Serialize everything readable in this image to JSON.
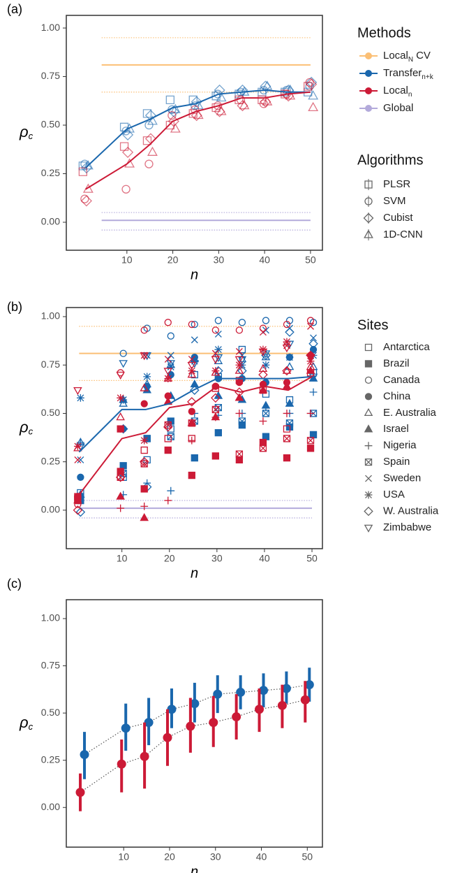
{
  "chart_data": [
    {
      "type": "line",
      "panel": "(a)",
      "xlabel": "n",
      "ylabel": "ρ",
      "ylabel_sub": "c",
      "xlim": [
        -3.2,
        52.6
      ],
      "ylim": [
        -0.144,
        1.065
      ],
      "xticks": [
        10,
        20,
        30,
        40,
        50
      ],
      "yticks": [
        {
          "value": 0,
          "label": "0.00"
        },
        0.25,
        {
          "value": 0.5,
          "label": "0.50"
        },
        0.75,
        {
          "value": 1,
          "label": "1.00"
        }
      ],
      "x": [
        1,
        10,
        15,
        20,
        25,
        30,
        35,
        40,
        45,
        50
      ],
      "legend_title": "Methods",
      "methods": [
        {
          "name": "Local",
          "sub": "N",
          "suffix": "CV",
          "color": "#fbbf75",
          "value": 0.81,
          "band": [
            0.67,
            0.95
          ],
          "span": [
            4.5,
            50
          ]
        },
        {
          "name": "Transfer",
          "sub": "n+k",
          "color": "#1a67ad",
          "values": [
            0.28,
            0.48,
            0.53,
            0.59,
            0.61,
            0.66,
            0.67,
            0.68,
            0.67,
            0.67
          ],
          "points": [
            [
              0.29,
              0.49,
              0.56,
              0.63,
              0.63,
              0.65,
              0.66,
              0.67,
              0.67,
              0.67
            ],
            [
              0.3,
              0.47,
              0.5,
              0.58,
              0.6,
              0.66,
              0.67,
              0.68,
              0.68,
              0.7
            ],
            [
              0.28,
              0.45,
              0.55,
              0.57,
              0.62,
              0.68,
              0.68,
              0.7,
              0.68,
              0.72
            ],
            [
              0.29,
              0.48,
              0.52,
              0.58,
              0.6,
              0.64,
              0.67,
              0.7,
              0.68,
              0.65
            ]
          ]
        },
        {
          "name": "Local",
          "sub": "n",
          "color": "#cc1a36",
          "values": [
            0.17,
            0.3,
            0.4,
            0.52,
            0.57,
            0.6,
            0.64,
            0.64,
            0.66,
            0.67
          ],
          "points": [
            [
              0.26,
              0.39,
              0.42,
              0.5,
              0.56,
              0.59,
              0.63,
              0.63,
              0.66,
              0.7
            ],
            [
              0.12,
              0.17,
              0.3,
              0.55,
              0.58,
              0.6,
              0.63,
              0.61,
              0.66,
              0.72
            ],
            [
              0.11,
              0.36,
              0.43,
              0.52,
              0.55,
              0.57,
              0.6,
              0.62,
              0.65,
              0.71
            ],
            [
              0.17,
              0.3,
              0.36,
              0.48,
              0.55,
              0.57,
              0.6,
              0.62,
              0.65,
              0.59
            ]
          ]
        },
        {
          "name": "Global",
          "color": "#b3aadb",
          "value": 0.01,
          "band": [
            -0.04,
            0.05
          ],
          "span": [
            4.5,
            50
          ]
        }
      ],
      "algorithms_title": "Algorithms",
      "algorithms": [
        {
          "name": "PLSR",
          "shape": "square"
        },
        {
          "name": "SVM",
          "shape": "circle"
        },
        {
          "name": "Cubist",
          "shape": "diamond"
        },
        {
          "name": "1D-CNN",
          "shape": "triangle"
        }
      ]
    },
    {
      "type": "scatter",
      "panel": "(b)",
      "xlabel": "n",
      "ylabel": "ρ",
      "ylabel_sub": "c",
      "xlim": [
        -1.7,
        52.2
      ],
      "ylim": [
        -0.199,
        1.047
      ],
      "xticks": [
        10,
        20,
        30,
        40,
        50
      ],
      "yticks": [
        {
          "value": 0,
          "label": "0.00"
        },
        0.25,
        {
          "value": 0.5,
          "label": "0.50"
        },
        0.75,
        {
          "value": 1,
          "label": "1.00"
        }
      ],
      "x": [
        1,
        10,
        15,
        20,
        25,
        30,
        35,
        40,
        45,
        50
      ],
      "refs": [
        {
          "color": "#fbbf75",
          "value": 0.81,
          "band": [
            0.67,
            0.95
          ],
          "span": [
            1,
            50
          ]
        },
        {
          "color": "#b3aadb",
          "value": 0.01,
          "band": [
            -0.04,
            0.05
          ],
          "span": [
            1,
            50
          ]
        }
      ],
      "lines": [
        {
          "color": "#1a67ad",
          "values": [
            0.3,
            0.52,
            0.52,
            0.55,
            0.62,
            0.68,
            0.68,
            0.68,
            0.68,
            0.69
          ],
          "sites": [
            [
              0.09,
              0.17,
              0.26,
              0.42,
              0.7,
              0.69,
              0.83,
              0.6,
              0.57,
              0.71
            ],
            [
              0.05,
              0.23,
              0.37,
              0.46,
              0.27,
              0.4,
              0.44,
              0.38,
              0.43,
              0.39
            ],
            [
              0.05,
              0.81,
              0.94,
              0.9,
              0.96,
              0.98,
              0.97,
              0.98,
              0.98,
              0.97
            ],
            [
              0.17,
              0.42,
              0.64,
              0.7,
              0.79,
              0.68,
              0.68,
              0.66,
              0.79,
              0.83
            ],
            [
              0.35,
              0.55,
              0.65,
              0.75,
              0.78,
              0.77,
              0.78,
              0.79,
              0.74,
              0.74
            ],
            [
              0.08,
              0.57,
              0.62,
              0.59,
              0.65,
              0.59,
              0.57,
              0.54,
              0.55,
              0.68
            ],
            [
              0.35,
              0.08,
              0.14,
              0.1,
              0.5,
              0.49,
              0.5,
              0.53,
              0.5,
              0.61
            ],
            [
              0.07,
              0.19,
              0.37,
              0.38,
              0.46,
              0.53,
              0.46,
              0.5,
              0.45,
              0.5
            ],
            [
              0.26,
              0.57,
              0.8,
              0.8,
              0.88,
              0.91,
              0.8,
              0.93,
              0.94,
              0.89
            ],
            [
              0.58,
              0.57,
              0.69,
              0.74,
              0.77,
              0.83,
              0.75,
              0.75,
              0.79,
              0.8
            ],
            [
              -0.01,
              0.42,
              0.12,
              0.57,
              0.62,
              0.72,
              0.72,
              0.8,
              0.92,
              0.86
            ],
            [
              0.33,
              0.76,
              0.8,
              0.76,
              0.76,
              0.79,
              0.78,
              0.81,
              0.86,
              0.69
            ]
          ]
        },
        {
          "color": "#cc1a36",
          "values": [
            0.08,
            0.37,
            0.4,
            0.53,
            0.55,
            0.64,
            0.61,
            0.64,
            0.62,
            0.69
          ],
          "sites": [
            [
              0.07,
              0.42,
              0.31,
              0.37,
              0.37,
              0.63,
              0.67,
              0.62,
              0.42,
              0.71
            ],
            [
              0.06,
              0.2,
              0.11,
              0.31,
              0.18,
              0.28,
              0.26,
              0.35,
              0.27,
              0.32
            ],
            [
              0.03,
              0.71,
              0.93,
              0.97,
              0.96,
              0.93,
              0.93,
              0.94,
              0.96,
              0.98
            ],
            [
              0.07,
              0.42,
              0.55,
              0.59,
              0.51,
              0.64,
              0.66,
              0.65,
              0.66,
              0.8
            ],
            [
              0.32,
              0.48,
              0.63,
              0.68,
              0.7,
              0.71,
              0.72,
              0.73,
              0.72,
              0.74
            ],
            [
              0.05,
              0.07,
              -0.04,
              0.56,
              0.45,
              0.48,
              0.58,
              0.62,
              0.64,
              0.72
            ],
            [
              0.07,
              0.01,
              0.02,
              0.05,
              0.36,
              0.48,
              0.5,
              0.46,
              0.5,
              0.5
            ],
            [
              0.05,
              0.17,
              0.24,
              0.44,
              0.45,
              0.52,
              0.29,
              0.32,
              0.37,
              0.36
            ],
            [
              0.26,
              0.42,
              0.8,
              0.78,
              0.78,
              0.81,
              0.82,
              0.92,
              0.85,
              0.95
            ],
            [
              0.33,
              0.58,
              0.36,
              0.68,
              0.72,
              0.72,
              0.75,
              0.83,
              0.87,
              0.77
            ],
            [
              0.0,
              0.17,
              0.25,
              0.43,
              0.56,
              0.58,
              0.61,
              0.7,
              0.72,
              0.8
            ],
            [
              0.62,
              0.7,
              0.8,
              0.72,
              0.75,
              0.78,
              0.78,
              0.82,
              0.84,
              0.79
            ]
          ]
        }
      ],
      "legend_title": "Sites",
      "sites": [
        {
          "name": "Antarctica",
          "shape": "square"
        },
        {
          "name": "Brazil",
          "shape": "square-filled"
        },
        {
          "name": "Canada",
          "shape": "circle"
        },
        {
          "name": "China",
          "shape": "circle-filled"
        },
        {
          "name": "E. Australia",
          "shape": "triangle"
        },
        {
          "name": "Israel",
          "shape": "triangle-filled"
        },
        {
          "name": "Nigeria",
          "shape": "plus"
        },
        {
          "name": "Spain",
          "shape": "boxed-x"
        },
        {
          "name": "Sweden",
          "shape": "cross"
        },
        {
          "name": "USA",
          "shape": "asterisk"
        },
        {
          "name": "W. Australia",
          "shape": "diamond"
        },
        {
          "name": "Zimbabwe",
          "shape": "triangle-down"
        }
      ]
    },
    {
      "type": "errorbar",
      "panel": "(c)",
      "xlabel": "n",
      "ylabel": "ρ",
      "ylabel_sub": "c",
      "xlim": [
        -2.5,
        53.3
      ],
      "ylim": [
        -0.21,
        1.1
      ],
      "xticks": [
        10,
        20,
        30,
        40,
        50
      ],
      "yticks": [
        {
          "value": 0,
          "label": "0.00"
        },
        0.25,
        {
          "value": 0.5,
          "label": "0.50"
        },
        0.75,
        {
          "value": 1,
          "label": "1.00"
        }
      ],
      "x": [
        1,
        10,
        15,
        20,
        25,
        30,
        35,
        40,
        45,
        50
      ],
      "means": [
        {
          "color": "#1a67ad",
          "values": [
            0.28,
            0.42,
            0.45,
            0.52,
            0.55,
            0.6,
            0.61,
            0.62,
            0.63,
            0.65
          ],
          "low": [
            0.15,
            0.3,
            0.33,
            0.42,
            0.45,
            0.5,
            0.52,
            0.53,
            0.55,
            0.56
          ],
          "high": [
            0.4,
            0.55,
            0.58,
            0.63,
            0.66,
            0.7,
            0.7,
            0.71,
            0.72,
            0.74
          ]
        },
        {
          "color": "#cc1a36",
          "values": [
            0.08,
            0.23,
            0.27,
            0.37,
            0.43,
            0.45,
            0.48,
            0.52,
            0.54,
            0.57
          ],
          "low": [
            -0.02,
            0.08,
            0.1,
            0.22,
            0.29,
            0.32,
            0.36,
            0.4,
            0.42,
            0.45
          ],
          "high": [
            0.18,
            0.36,
            0.45,
            0.52,
            0.58,
            0.59,
            0.6,
            0.63,
            0.65,
            0.67
          ]
        }
      ]
    }
  ]
}
